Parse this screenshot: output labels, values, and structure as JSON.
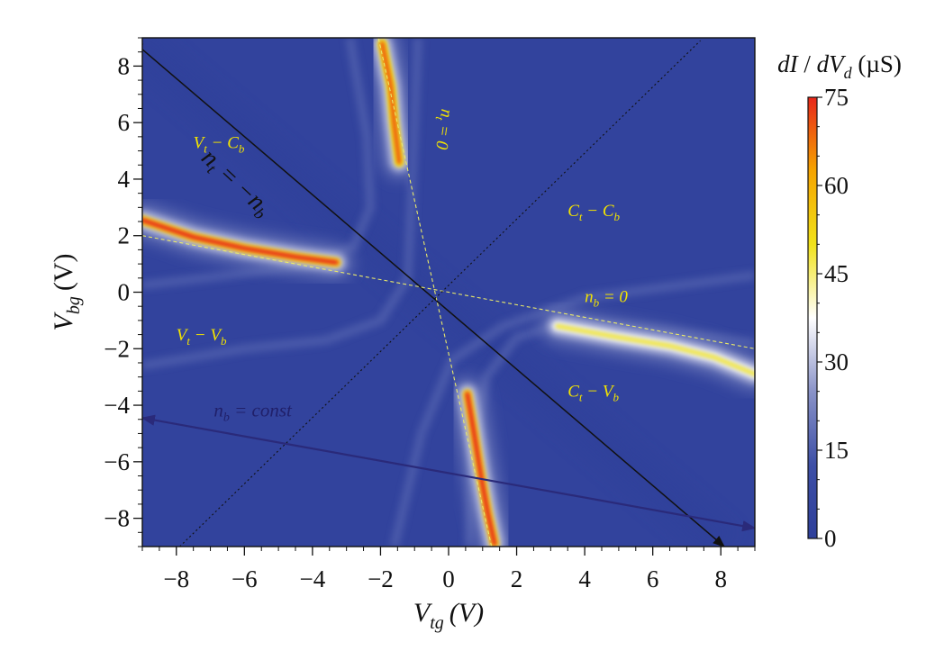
{
  "chart_data": {
    "type": "heatmap",
    "x_axis": {
      "label": "V",
      "label_sub": "tg",
      "unit": "(V)",
      "range": [
        -9,
        9
      ],
      "ticks": [
        -8,
        -6,
        -4,
        -2,
        0,
        2,
        4,
        6,
        8
      ],
      "tick_labels": [
        "−8",
        "−6",
        "−4",
        "−2",
        "0",
        "2",
        "4",
        "6",
        "8"
      ]
    },
    "y_axis": {
      "label": "V",
      "label_sub": "bg",
      "unit": "(V)",
      "range": [
        -9,
        9
      ],
      "ticks": [
        -8,
        -6,
        -4,
        -2,
        0,
        2,
        4,
        6,
        8
      ],
      "tick_labels": [
        "−8",
        "−6",
        "−4",
        "−2",
        "0",
        "2",
        "4",
        "6",
        "8"
      ]
    },
    "colorbar": {
      "title_parts": [
        "dI",
        " / ",
        "dV",
        "d",
        " (µS)"
      ],
      "range": [
        0,
        75
      ],
      "ticks": [
        0,
        15,
        30,
        45,
        60,
        75
      ],
      "tick_labels": [
        "0",
        "15",
        "30",
        "45",
        "60",
        "75"
      ],
      "colors": [
        "#2e3f9a",
        "#3d4fa6",
        "#8a93c8",
        "#ffffff",
        "#f1e21a",
        "#f5a400",
        "#e8261a"
      ]
    },
    "background_value": 3,
    "lines": [
      {
        "id": "n_t_eq_neg_n_b",
        "style": "solid-arrow",
        "color": "#111111",
        "from": [
          -9.3,
          8.9
        ],
        "to": [
          8.1,
          -9.0
        ]
      },
      {
        "id": "n_t_eq_0",
        "style": "dashed",
        "color": "#e8e86a",
        "from": [
          -2.1,
          9.2
        ],
        "to": [
          1.3,
          -9.2
        ]
      },
      {
        "id": "n_b_eq_0",
        "style": "dashed",
        "color": "#e8e86a",
        "from": [
          -9,
          2.0
        ],
        "to": [
          9,
          -2.0
        ]
      },
      {
        "id": "diag_dotted",
        "style": "dotted",
        "color": "#111111",
        "from": [
          -7.9,
          -9
        ],
        "to": [
          7.4,
          8.9
        ]
      },
      {
        "id": "n_b_const",
        "style": "solid-double-arrow",
        "color": "#2a2a7a",
        "from": [
          -9,
          -4.45
        ],
        "to": [
          9,
          -8.35
        ]
      }
    ],
    "hot_ridges": [
      {
        "region": "upper-left horizontal",
        "points": [
          [
            -9,
            2.55
          ],
          [
            -7.5,
            1.95
          ],
          [
            -6,
            1.55
          ],
          [
            -4.5,
            1.25
          ],
          [
            -3.3,
            1.05
          ]
        ],
        "peak": 75
      },
      {
        "region": "lower-right horizontal",
        "points": [
          [
            3.2,
            -1.2
          ],
          [
            5,
            -1.6
          ],
          [
            6.5,
            -1.9
          ],
          [
            7.8,
            -2.3
          ],
          [
            9,
            -2.9
          ]
        ],
        "peak": 48
      },
      {
        "region": "upper vertical",
        "points": [
          [
            -1.95,
            8.8
          ],
          [
            -1.7,
            7.3
          ],
          [
            -1.6,
            6.0
          ],
          [
            -1.45,
            4.6
          ]
        ],
        "peak": 70
      },
      {
        "region": "lower vertical",
        "points": [
          [
            0.55,
            -3.6
          ],
          [
            0.75,
            -5.0
          ],
          [
            0.95,
            -6.5
          ],
          [
            1.15,
            -7.8
          ],
          [
            1.35,
            -8.9
          ]
        ],
        "peak": 75
      }
    ],
    "annotations": {
      "n_t_eq_neg_n_b": {
        "parts": [
          "n",
          "t",
          " = −",
          "n",
          "b"
        ]
      },
      "n_t_eq_0": {
        "parts": [
          "n",
          "t",
          " = 0"
        ]
      },
      "n_b_eq_0": {
        "parts": [
          "n",
          "b",
          " = 0"
        ]
      },
      "n_b_const": {
        "parts": [
          "n",
          "b",
          " = const"
        ]
      },
      "regions": [
        {
          "id": "Vt-Cb",
          "parts": [
            "V",
            "t",
            " − ",
            "C",
            "b"
          ]
        },
        {
          "id": "Ct-Cb",
          "parts": [
            "C",
            "t",
            " − ",
            "C",
            "b"
          ]
        },
        {
          "id": "Vt-Vb",
          "parts": [
            "V",
            "t",
            " − ",
            "V",
            "b"
          ]
        },
        {
          "id": "Ct-Vb",
          "parts": [
            "C",
            "t",
            " − ",
            "V",
            "b"
          ]
        }
      ]
    }
  }
}
